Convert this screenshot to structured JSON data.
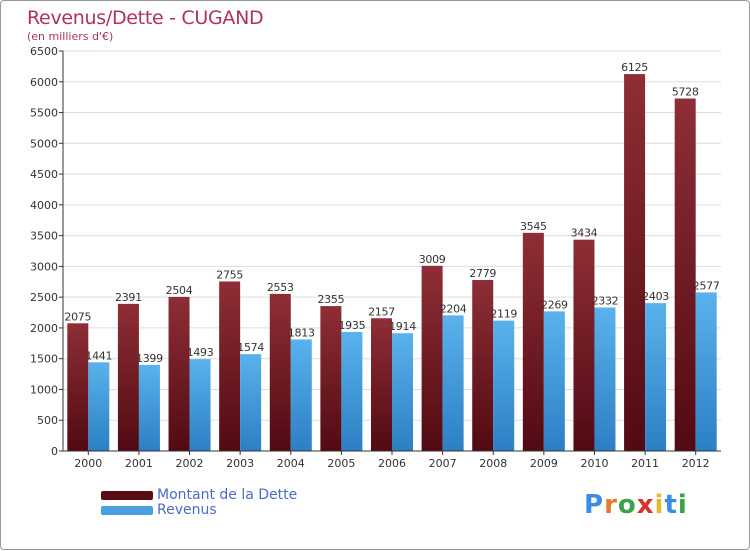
{
  "title": "Revenus/Dette - CUGAND",
  "subtitle": "(en milliers d'€)",
  "logo": {
    "letters": [
      "P",
      "r",
      "o",
      "x",
      "i",
      "t",
      "i"
    ],
    "colors": [
      "#3a8ee6",
      "#e8792a",
      "#3aa24a",
      "#d6342b",
      "#e8b72a",
      "#3a8ee6",
      "#3aa24a"
    ]
  },
  "chart_data": {
    "type": "bar",
    "title": "Revenus/Dette - CUGAND",
    "subtitle": "(en milliers d'€)",
    "xlabel": "",
    "ylabel": "",
    "categories": [
      "2000",
      "2001",
      "2002",
      "2003",
      "2004",
      "2005",
      "2006",
      "2007",
      "2008",
      "2009",
      "2010",
      "2011",
      "2012"
    ],
    "series": [
      {
        "name": "Montant de la Dette",
        "color": "#7a1e28",
        "values": [
          2075,
          2391,
          2504,
          2755,
          2553,
          2355,
          2157,
          3009,
          2779,
          3545,
          3434,
          6125,
          5728
        ]
      },
      {
        "name": "Revenus",
        "color": "#4a9fe0",
        "values": [
          1441,
          1399,
          1493,
          1574,
          1813,
          1935,
          1914,
          2204,
          2119,
          2269,
          2332,
          2403,
          2577
        ]
      }
    ],
    "ylim": [
      0,
      6500
    ],
    "yticks": [
      "0",
      "500",
      "1000",
      "1500",
      "2000",
      "2500",
      "3000",
      "3500",
      "4000",
      "4500",
      "5000",
      "5500",
      "6000",
      "6500"
    ],
    "grid": true,
    "legend": "bottom-left"
  }
}
